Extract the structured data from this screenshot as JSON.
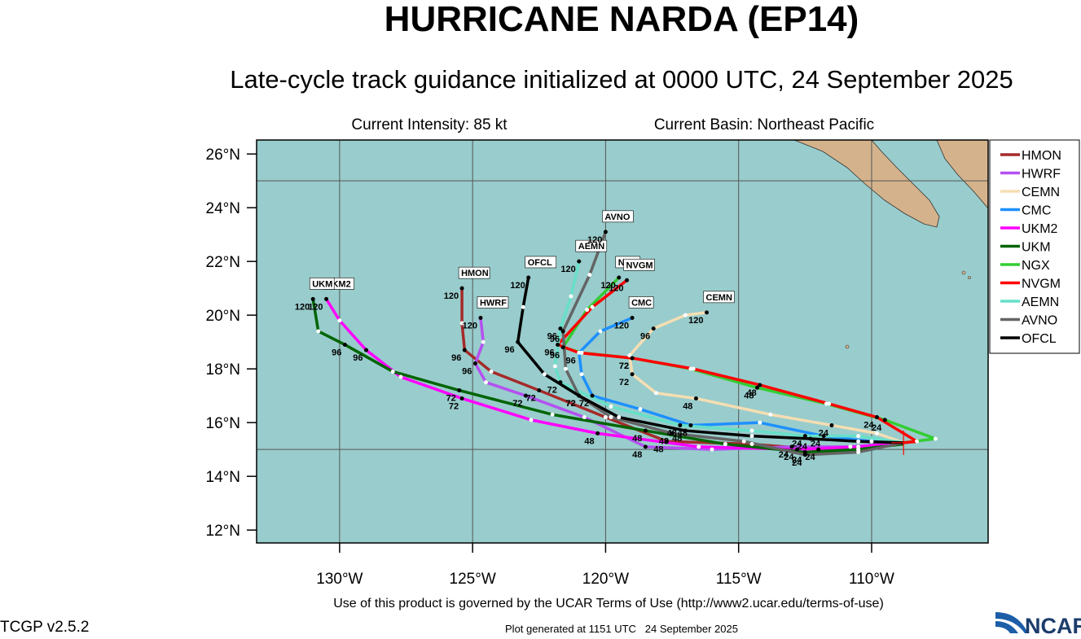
{
  "chart_data": {
    "type": "track_map",
    "title": "HURRICANE NARDA (EP14)",
    "subtitle": "Late-cycle track guidance initialized at 0000 UTC, 24 September 2025",
    "intensity_label": "Current Intensity: 85 kt",
    "basin_label": "Current Basin: Northeast Pacific",
    "terms_text": "Use of this product is governed by the UCAR Terms of Use (http://www2.ucar.edu/terms-of-use)",
    "version_text": "TCGP v2.5.2",
    "generated_text": "Plot generated at 1151 UTC   24 September 2025",
    "logo_text": "NCAR",
    "xlim": [
      -133.12,
      -105.62
    ],
    "ylim": [
      11.52,
      26.52
    ],
    "xticks": [
      {
        "value": -130,
        "label": "130°W"
      },
      {
        "value": -125,
        "label": "125°W"
      },
      {
        "value": -120,
        "label": "120°W"
      },
      {
        "value": -115,
        "label": "115°W"
      },
      {
        "value": -110,
        "label": "110°W"
      }
    ],
    "yticks": [
      {
        "value": 12,
        "label": "12°N"
      },
      {
        "value": 14,
        "label": "14°N"
      },
      {
        "value": 16,
        "label": "16°N"
      },
      {
        "value": 18,
        "label": "18°N"
      },
      {
        "value": 20,
        "label": "20°N"
      },
      {
        "value": 22,
        "label": "22°N"
      },
      {
        "value": 24,
        "label": "24°N"
      },
      {
        "value": 26,
        "label": "26°N"
      }
    ],
    "grid_lon": [
      -130,
      -125,
      -120,
      -115,
      -110
    ],
    "grid_lat": [
      15,
      25
    ],
    "hour_labels": [
      "24",
      "48",
      "72",
      "96",
      "120"
    ],
    "current_position": {
      "lon": -108.8,
      "lat": 15.25
    },
    "series": [
      {
        "name": "HMON",
        "color": "#a52a2a",
        "lon": [
          -108.8,
          -110.5,
          -112.0,
          -114.5,
          -117.7,
          -120.0,
          -122.5,
          -124.3,
          -125.3,
          -125.4,
          -125.4
        ],
        "lat": [
          15.25,
          15.0,
          15.0,
          15.2,
          15.3,
          16.2,
          17.2,
          17.9,
          18.7,
          19.7,
          21.0
        ]
      },
      {
        "name": "HWRF",
        "color": "#b450f0",
        "lon": [
          -108.8,
          -110.8,
          -113.0,
          -116.0,
          -118.5,
          -120.8,
          -123.0,
          -124.5,
          -124.9,
          -124.6,
          -124.7
        ],
        "lat": [
          15.25,
          15.1,
          15.1,
          15.0,
          15.1,
          16.2,
          17.0,
          17.5,
          18.2,
          19.0,
          19.9
        ]
      },
      {
        "name": "CEMN",
        "color": "#f5deb3",
        "lon": [
          -108.8,
          -109.8,
          -111.5,
          -113.8,
          -116.6,
          -118.1,
          -119.0,
          -119.1,
          -118.2,
          -117.0,
          -116.2
        ],
        "lat": [
          15.25,
          15.6,
          15.9,
          16.3,
          16.9,
          17.1,
          17.8,
          18.5,
          19.5,
          20.0,
          20.1
        ]
      },
      {
        "name": "CMC",
        "color": "#1e90ff",
        "lon": [
          -108.8,
          -110.0,
          -111.8,
          -114.2,
          -116.8,
          -118.7,
          -120.5,
          -120.9,
          -121.0,
          -120.2,
          -119.0
        ],
        "lat": [
          15.25,
          15.3,
          15.5,
          16.0,
          15.9,
          16.5,
          17.0,
          17.8,
          18.6,
          19.4,
          19.9
        ]
      },
      {
        "name": "UKM2",
        "color": "#ff00ff",
        "lon": [
          -108.8,
          -110.5,
          -112.8,
          -116.5,
          -120.3,
          -122.8,
          -125.4,
          -127.7,
          -129.0,
          -130.0,
          -130.5
        ],
        "lat": [
          15.25,
          15.1,
          15.0,
          15.1,
          15.6,
          16.1,
          16.9,
          17.7,
          18.7,
          19.8,
          20.6
        ]
      },
      {
        "name": "UKM",
        "color": "#006400",
        "lon": [
          -108.8,
          -110.5,
          -112.5,
          -115.5,
          -118.5,
          -122.0,
          -125.5,
          -128.0,
          -129.8,
          -130.8,
          -131.0
        ],
        "lat": [
          15.2,
          15.0,
          14.9,
          15.2,
          15.7,
          16.3,
          17.2,
          17.9,
          18.9,
          19.4,
          20.6
        ]
      },
      {
        "name": "NGX",
        "color": "#32cd32",
        "lon": [
          -108.8,
          -107.6,
          -109.5,
          -111.7,
          -114.3,
          -116.8,
          -119.0,
          -120.9,
          -121.6,
          -120.7,
          -119.5
        ],
        "lat": [
          15.25,
          15.4,
          16.1,
          16.7,
          17.3,
          18.0,
          18.4,
          18.6,
          18.8,
          20.2,
          21.4
        ]
      },
      {
        "name": "NVGM",
        "color": "#ff0000",
        "lon": [
          -108.8,
          -108.3,
          -109.8,
          -111.6,
          -114.2,
          -116.7,
          -119.0,
          -121.0,
          -121.8,
          -120.5,
          -119.2
        ],
        "lat": [
          15.25,
          15.3,
          16.2,
          16.7,
          17.4,
          18.0,
          18.4,
          18.6,
          18.9,
          20.3,
          21.3
        ]
      },
      {
        "name": "AEMN",
        "color": "#66e0c8",
        "lon": [
          -108.8,
          -110.5,
          -112.5,
          -114.5,
          -117.2,
          -119.8,
          -121.7,
          -121.9,
          -121.7,
          -121.3,
          -121.0
        ],
        "lat": [
          15.25,
          15.5,
          15.5,
          15.7,
          15.9,
          16.6,
          17.5,
          18.1,
          19.5,
          20.7,
          22.0
        ]
      },
      {
        "name": "AVNO",
        "color": "#646464",
        "lon": [
          -108.8,
          -110.5,
          -112.5,
          -114.8,
          -117.5,
          -119.8,
          -121.0,
          -121.5,
          -121.6,
          -120.6,
          -120.0
        ],
        "lat": [
          15.25,
          14.9,
          14.8,
          15.3,
          15.6,
          16.2,
          17.0,
          18.0,
          19.4,
          21.5,
          23.1
        ]
      },
      {
        "name": "OFCL",
        "color": "#000000",
        "lon": [
          -108.8,
          -110.5,
          -112.3,
          -114.5,
          -117.0,
          -119.5,
          -121.0,
          -122.3,
          -123.3,
          -123.1,
          -122.9
        ],
        "lat": [
          15.25,
          15.3,
          15.4,
          15.5,
          15.7,
          16.2,
          17.0,
          17.8,
          19.0,
          20.3,
          21.4
        ]
      }
    ]
  }
}
